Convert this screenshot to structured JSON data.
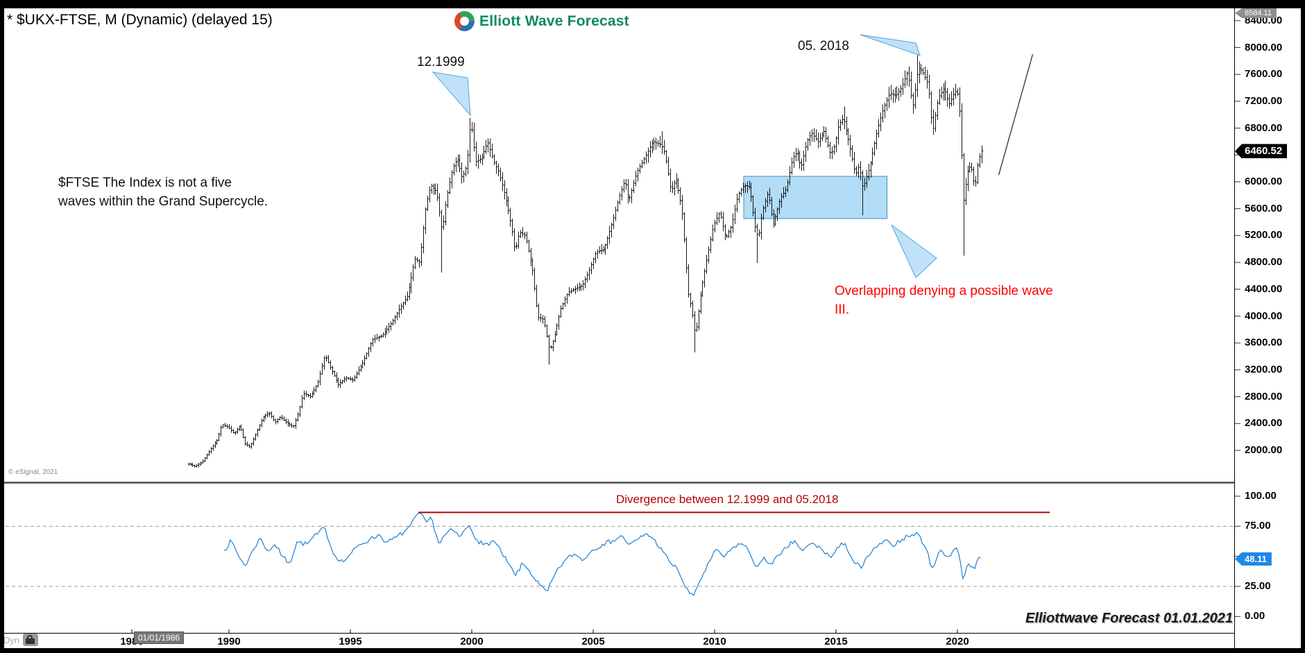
{
  "window": {
    "title": "* $UKX-FTSE, M (Dynamic) (delayed 15)",
    "copyright": "© eSignal, 2021",
    "mode_label": "Dyn",
    "start_date_badge": "01/01/1986"
  },
  "logo": {
    "text": "Elliott Wave Forecast",
    "accent": "#108a5a"
  },
  "price_axis": {
    "scale_high_badge": "8584.11",
    "last_price_badge": "6460.52",
    "ticks": [
      "8400.00",
      "8000.00",
      "7600.00",
      "7200.00",
      "6800.00",
      "6400.00",
      "6000.00",
      "5600.00",
      "5200.00",
      "4800.00",
      "4400.00",
      "4000.00",
      "3600.00",
      "3200.00",
      "2800.00",
      "2400.00",
      "2000.00"
    ]
  },
  "rsi_axis": {
    "ticks": [
      "100.00",
      "75.00",
      "50.00",
      "25.00",
      "0.00"
    ],
    "last_value_badge": "48.11"
  },
  "time_axis": {
    "years": [
      "1986",
      "1990",
      "1995",
      "2000",
      "2005",
      "2010",
      "2015",
      "2020"
    ]
  },
  "annotations": {
    "peak_1999_label": "12.1999",
    "peak_2018_label": "05. 2018",
    "note_line1": "$FTSE The Index is not a five",
    "note_line2": "waves within the Grand Supercycle.",
    "overlap_line1": "Overlapping denying a possible wave",
    "overlap_line2": "III.",
    "divergence_label": "Divergence between 12.1999 and 05.2018",
    "watermark": "Elliottwave Forecast 01.01.2021"
  },
  "colors": {
    "overlap_red": "#ff0000",
    "divergence_red": "#b40000",
    "rsi_blue": "#1d7fd1",
    "arrow_fill": "#bfe2f8",
    "arrow_stroke": "#58a2d8",
    "box_fill": "rgba(150,206,242,0.72)",
    "box_stroke": "#3e8fc9",
    "badge_black": "#000000",
    "badge_gray": "#8f8f8f",
    "badge_blue": "#1e88e5"
  },
  "chart_data": [
    {
      "type": "bar",
      "subtype": "ohlc-monthly",
      "symbol": "$UKX-FTSE",
      "timeframe": "M",
      "title": "* $UKX-FTSE, M (Dynamic) (delayed 15)",
      "x_range": [
        1988.333,
        2021.0
      ],
      "xticks": [
        1986,
        1990,
        1995,
        2000,
        2005,
        2010,
        2015,
        2020
      ],
      "ylim": [
        1520,
        8584.11
      ],
      "ytick_step": 400,
      "grid": false,
      "last_close": 6460.52,
      "scale_high": 8584.11,
      "close_keypoints": [
        [
          1988.38,
          1795
        ],
        [
          1988.6,
          1760
        ],
        [
          1988.9,
          1830
        ],
        [
          1989.2,
          2000
        ],
        [
          1989.5,
          2150
        ],
        [
          1989.7,
          2380
        ],
        [
          1989.95,
          2350
        ],
        [
          1990.2,
          2250
        ],
        [
          1990.45,
          2370
        ],
        [
          1990.65,
          2100
        ],
        [
          1990.85,
          2050
        ],
        [
          1991.1,
          2250
        ],
        [
          1991.4,
          2500
        ],
        [
          1991.65,
          2560
        ],
        [
          1991.9,
          2420
        ],
        [
          1992.1,
          2500
        ],
        [
          1992.4,
          2400
        ],
        [
          1992.65,
          2350
        ],
        [
          1992.85,
          2550
        ],
        [
          1993.05,
          2850
        ],
        [
          1993.35,
          2800
        ],
        [
          1993.65,
          3000
        ],
        [
          1993.95,
          3420
        ],
        [
          1994.15,
          3250
        ],
        [
          1994.5,
          2980
        ],
        [
          1994.8,
          3080
        ],
        [
          1995.1,
          3050
        ],
        [
          1995.5,
          3300
        ],
        [
          1995.9,
          3650
        ],
        [
          1996.3,
          3710
        ],
        [
          1996.7,
          3900
        ],
        [
          1997.0,
          4100
        ],
        [
          1997.35,
          4300
        ],
        [
          1997.65,
          4850
        ],
        [
          1997.85,
          4800
        ],
        [
          1998.1,
          5650
        ],
        [
          1998.3,
          5950
        ],
        [
          1998.55,
          5850
        ],
        [
          1998.78,
          5250
        ],
        [
          1998.95,
          5750
        ],
        [
          1999.2,
          6200
        ],
        [
          1999.4,
          6350
        ],
        [
          1999.6,
          6050
        ],
        [
          1999.8,
          6250
        ],
        [
          1999.95,
          6930
        ],
        [
          2000.15,
          6300
        ],
        [
          2000.4,
          6350
        ],
        [
          2000.65,
          6600
        ],
        [
          2000.9,
          6300
        ],
        [
          2001.1,
          6150
        ],
        [
          2001.4,
          5750
        ],
        [
          2001.65,
          5300
        ],
        [
          2001.78,
          4950
        ],
        [
          2001.95,
          5250
        ],
        [
          2002.2,
          5200
        ],
        [
          2002.5,
          4680
        ],
        [
          2002.72,
          3980
        ],
        [
          2002.95,
          3950
        ],
        [
          2003.2,
          3480
        ],
        [
          2003.4,
          3700
        ],
        [
          2003.65,
          4100
        ],
        [
          2003.95,
          4350
        ],
        [
          2004.2,
          4400
        ],
        [
          2004.55,
          4450
        ],
        [
          2004.85,
          4700
        ],
        [
          2005.1,
          4950
        ],
        [
          2005.45,
          5000
        ],
        [
          2005.8,
          5420
        ],
        [
          2006.05,
          5760
        ],
        [
          2006.3,
          6030
        ],
        [
          2006.45,
          5700
        ],
        [
          2006.8,
          6150
        ],
        [
          2007.1,
          6350
        ],
        [
          2007.45,
          6600
        ],
        [
          2007.8,
          6550
        ],
        [
          2007.95,
          6420
        ],
        [
          2008.2,
          5850
        ],
        [
          2008.4,
          6050
        ],
        [
          2008.65,
          5600
        ],
        [
          2008.8,
          4900
        ],
        [
          2008.9,
          4350
        ],
        [
          2009.05,
          4100
        ],
        [
          2009.2,
          3700
        ],
        [
          2009.45,
          4400
        ],
        [
          2009.7,
          4900
        ],
        [
          2009.95,
          5350
        ],
        [
          2010.2,
          5550
        ],
        [
          2010.45,
          5150
        ],
        [
          2010.7,
          5350
        ],
        [
          2010.95,
          5800
        ],
        [
          2011.2,
          5950
        ],
        [
          2011.45,
          5920
        ],
        [
          2011.65,
          5350
        ],
        [
          2011.8,
          5150
        ],
        [
          2011.95,
          5550
        ],
        [
          2012.2,
          5850
        ],
        [
          2012.4,
          5350
        ],
        [
          2012.7,
          5750
        ],
        [
          2012.95,
          5900
        ],
        [
          2013.2,
          6350
        ],
        [
          2013.4,
          6450
        ],
        [
          2013.55,
          6200
        ],
        [
          2013.8,
          6600
        ],
        [
          2013.98,
          6730
        ],
        [
          2014.25,
          6600
        ],
        [
          2014.5,
          6750
        ],
        [
          2014.78,
          6400
        ],
        [
          2014.95,
          6550
        ],
        [
          2015.1,
          6850
        ],
        [
          2015.3,
          6950
        ],
        [
          2015.55,
          6550
        ],
        [
          2015.8,
          6100
        ],
        [
          2015.95,
          6250
        ],
        [
          2016.1,
          5900
        ],
        [
          2016.4,
          6250
        ],
        [
          2016.7,
          6780
        ],
        [
          2016.95,
          7100
        ],
        [
          2017.2,
          7320
        ],
        [
          2017.45,
          7280
        ],
        [
          2017.7,
          7400
        ],
        [
          2017.95,
          7650
        ],
        [
          2018.15,
          7100
        ],
        [
          2018.37,
          7700
        ],
        [
          2018.55,
          7650
        ],
        [
          2018.8,
          7450
        ],
        [
          2018.97,
          6730
        ],
        [
          2019.2,
          7250
        ],
        [
          2019.45,
          7400
        ],
        [
          2019.65,
          7150
        ],
        [
          2019.9,
          7350
        ],
        [
          2020.05,
          7290
        ],
        [
          2020.15,
          6580
        ],
        [
          2020.23,
          5670
        ],
        [
          2020.4,
          6150
        ],
        [
          2020.55,
          6250
        ],
        [
          2020.72,
          5900
        ],
        [
          2020.85,
          6300
        ],
        [
          2021.0,
          6460.52
        ]
      ],
      "extremes": [
        {
          "t": 1998.78,
          "low": 4648
        },
        {
          "t": 1999.95,
          "high": 6950.6
        },
        {
          "t": 2003.2,
          "low": 3277
        },
        {
          "t": 2007.8,
          "high": 6754
        },
        {
          "t": 2009.2,
          "low": 3460
        },
        {
          "t": 2011.78,
          "low": 4791
        },
        {
          "t": 2015.3,
          "high": 7122
        },
        {
          "t": 2016.12,
          "low": 5500
        },
        {
          "t": 2018.37,
          "high": 7903.5
        },
        {
          "t": 2020.23,
          "low": 4899
        }
      ],
      "drawings": {
        "overlap_box": {
          "t1": 2011.2,
          "t2": 2017.1,
          "price_top": 6082,
          "price_bottom": 5452
        },
        "forecast_trendline": {
          "t1": 2021.7,
          "price1": 6100,
          "t2": 2023.1,
          "price2": 7900
        },
        "arrow_targets": [
          {
            "label": "12.1999",
            "t": 2000.0,
            "price": 6950.6
          },
          {
            "label": "05. 2018",
            "t": 2018.37,
            "price": 7903.5
          },
          {
            "label": "overlap",
            "t": 2017.3,
            "price": 5000
          }
        ]
      }
    },
    {
      "type": "line",
      "subtype": "momentum-oscillator",
      "ylim": [
        0,
        100
      ],
      "yticks": [
        0,
        25,
        50,
        75,
        100
      ],
      "dashed_levels": [
        25,
        75
      ],
      "last_value": 48.11,
      "divergence_line": {
        "value": 86.5,
        "t_start": 1997.8,
        "t_end": 2023.8
      },
      "points": [
        [
          1989.8,
          55
        ],
        [
          1990.1,
          63
        ],
        [
          1990.4,
          50
        ],
        [
          1990.7,
          42
        ],
        [
          1991.0,
          56
        ],
        [
          1991.3,
          65
        ],
        [
          1991.6,
          54
        ],
        [
          1991.9,
          60
        ],
        [
          1992.2,
          50
        ],
        [
          1992.5,
          44
        ],
        [
          1992.8,
          62
        ],
        [
          1993.2,
          60
        ],
        [
          1993.6,
          68
        ],
        [
          1993.95,
          74
        ],
        [
          1994.3,
          52
        ],
        [
          1994.7,
          45
        ],
        [
          1995.0,
          52
        ],
        [
          1995.4,
          60
        ],
        [
          1995.8,
          64
        ],
        [
          1996.2,
          68
        ],
        [
          1996.5,
          61
        ],
        [
          1996.9,
          66
        ],
        [
          1997.2,
          70
        ],
        [
          1997.5,
          76
        ],
        [
          1997.85,
          87
        ],
        [
          1998.1,
          78
        ],
        [
          1998.35,
          82
        ],
        [
          1998.65,
          60
        ],
        [
          1998.9,
          68
        ],
        [
          1999.2,
          72
        ],
        [
          1999.5,
          66
        ],
        [
          1999.9,
          76
        ],
        [
          2000.2,
          64
        ],
        [
          2000.5,
          59
        ],
        [
          2000.9,
          63
        ],
        [
          2001.2,
          54
        ],
        [
          2001.5,
          44
        ],
        [
          2001.8,
          34
        ],
        [
          2002.1,
          44
        ],
        [
          2002.4,
          37
        ],
        [
          2002.8,
          26
        ],
        [
          2003.1,
          20
        ],
        [
          2003.4,
          34
        ],
        [
          2003.8,
          46
        ],
        [
          2004.2,
          52
        ],
        [
          2004.6,
          47
        ],
        [
          2005.0,
          56
        ],
        [
          2005.4,
          60
        ],
        [
          2005.8,
          63
        ],
        [
          2006.2,
          67
        ],
        [
          2006.5,
          59
        ],
        [
          2006.9,
          65
        ],
        [
          2007.2,
          69
        ],
        [
          2007.5,
          64
        ],
        [
          2007.9,
          53
        ],
        [
          2008.2,
          44
        ],
        [
          2008.5,
          39
        ],
        [
          2008.8,
          24
        ],
        [
          2009.1,
          16
        ],
        [
          2009.4,
          30
        ],
        [
          2009.8,
          46
        ],
        [
          2010.1,
          56
        ],
        [
          2010.4,
          49
        ],
        [
          2010.8,
          58
        ],
        [
          2011.1,
          61
        ],
        [
          2011.4,
          55
        ],
        [
          2011.75,
          40
        ],
        [
          2012.0,
          48
        ],
        [
          2012.3,
          44
        ],
        [
          2012.7,
          51
        ],
        [
          2013.0,
          58
        ],
        [
          2013.3,
          63
        ],
        [
          2013.6,
          54
        ],
        [
          2014.0,
          61
        ],
        [
          2014.4,
          56
        ],
        [
          2014.8,
          49
        ],
        [
          2015.1,
          57
        ],
        [
          2015.35,
          62
        ],
        [
          2015.7,
          46
        ],
        [
          2016.05,
          40
        ],
        [
          2016.3,
          50
        ],
        [
          2016.7,
          58
        ],
        [
          2017.0,
          63
        ],
        [
          2017.3,
          59
        ],
        [
          2017.7,
          64
        ],
        [
          2018.0,
          67
        ],
        [
          2018.37,
          69
        ],
        [
          2018.7,
          57
        ],
        [
          2018.95,
          40
        ],
        [
          2019.3,
          55
        ],
        [
          2019.6,
          49
        ],
        [
          2019.95,
          58
        ],
        [
          2020.1,
          49
        ],
        [
          2020.22,
          31
        ],
        [
          2020.45,
          44
        ],
        [
          2020.7,
          39
        ],
        [
          2020.9,
          50
        ],
        [
          2021.0,
          48.11
        ]
      ]
    }
  ]
}
